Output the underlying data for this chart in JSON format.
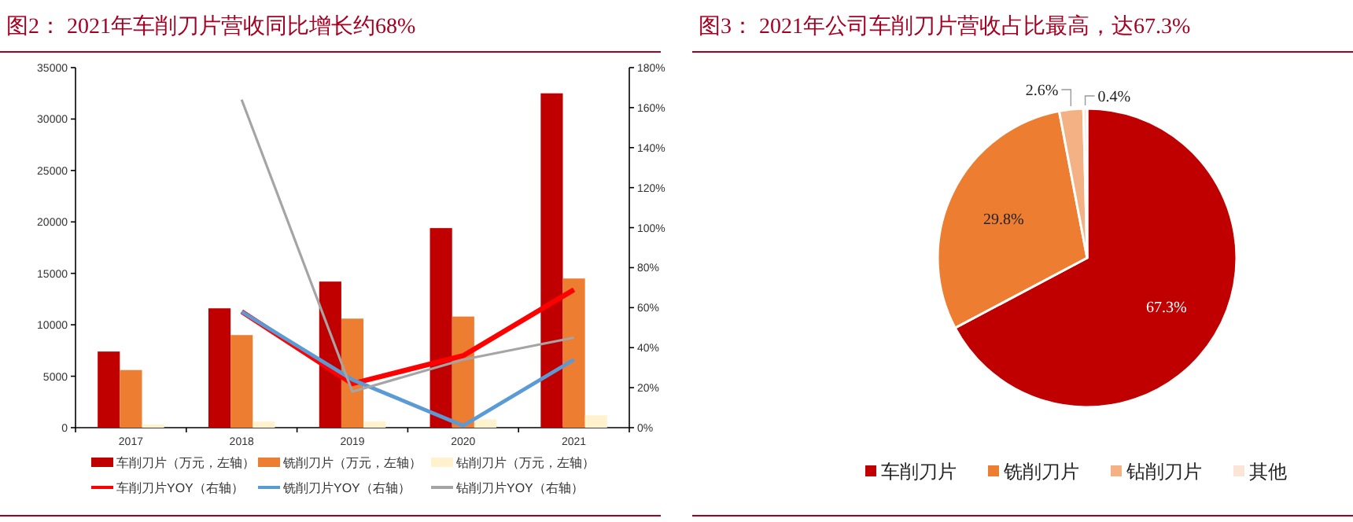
{
  "chart_data": [
    {
      "type": "bar",
      "title": "图2： 2021年车削刀片营收同比增长约68%",
      "categories": [
        "2017",
        "2018",
        "2019",
        "2020",
        "2021"
      ],
      "series": [
        {
          "name": "车削刀片（万元，左轴）",
          "color": "#c00000",
          "values": [
            7400,
            11600,
            14200,
            19400,
            32500
          ]
        },
        {
          "name": "铣削刀片（万元，左轴）",
          "color": "#ed7d31",
          "values": [
            5600,
            9000,
            10600,
            10800,
            14500
          ]
        },
        {
          "name": "钻削刀片（万元，左轴）",
          "color": "#fff2cc",
          "values": [
            300,
            600,
            600,
            800,
            1200
          ]
        },
        {
          "name": "车削刀片YOY（右轴）",
          "type": "line",
          "axis": "y2",
          "color": "#ff0000",
          "values": [
            null,
            58,
            22,
            36,
            69
          ]
        },
        {
          "name": "铣削刀片YOY（右轴）",
          "type": "line",
          "axis": "y2",
          "color": "#5b9bd5",
          "values": [
            null,
            58,
            24,
            1,
            34
          ]
        },
        {
          "name": "钻削刀片YOY（右轴）",
          "type": "line",
          "axis": "y2",
          "color": "#a5a5a5",
          "values": [
            null,
            164,
            18,
            34,
            45
          ]
        }
      ],
      "ylim": [
        0,
        35000
      ],
      "yticks": [
        0,
        5000,
        10000,
        15000,
        20000,
        25000,
        30000,
        35000
      ],
      "y2lim": [
        0,
        180
      ],
      "y2ticks": [
        {
          "value": 0,
          "label": "0%"
        },
        {
          "value": 20,
          "label": "20%"
        },
        {
          "value": 40,
          "label": "40%"
        },
        {
          "value": 60,
          "label": "60%"
        },
        {
          "value": 80,
          "label": "80%"
        },
        {
          "value": 100,
          "label": "100%"
        },
        {
          "value": 120,
          "label": "120%"
        },
        {
          "value": 140,
          "label": "140%"
        },
        {
          "value": 160,
          "label": "160%"
        },
        {
          "value": 180,
          "label": "180%"
        }
      ],
      "legend": "bottom",
      "grid": false
    },
    {
      "type": "pie",
      "title": "图3： 2021年公司车削刀片营收占比最高，达67.3%",
      "categories": [
        "车削刀片",
        "铣削刀片",
        "钻削刀片",
        "其他"
      ],
      "values": [
        67.3,
        29.8,
        2.6,
        0.4
      ],
      "colors": [
        "#c00000",
        "#ed7d31",
        "#f4b183",
        "#fbe5d6"
      ],
      "value_labels": [
        "67.3%",
        "29.8%",
        "2.6%",
        "0.4%"
      ],
      "legend": "bottom"
    }
  ]
}
